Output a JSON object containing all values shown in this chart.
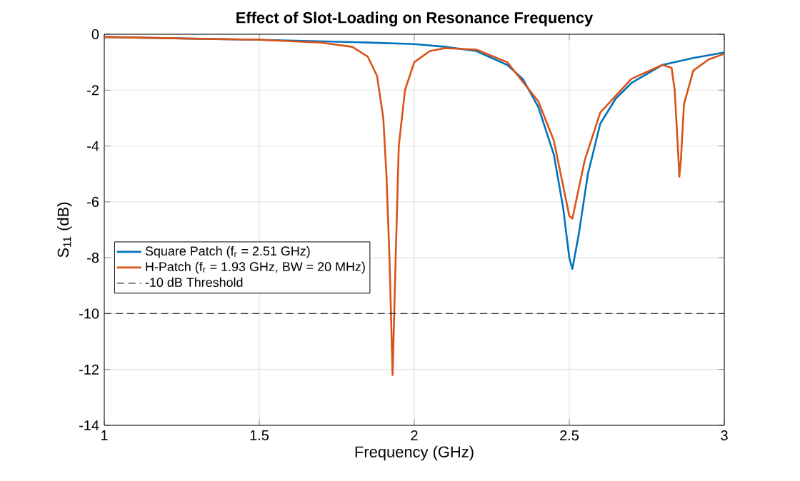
{
  "chart_data": {
    "type": "line",
    "title": "Effect of Slot-Loading on Resonance Frequency",
    "xlabel": "Frequency (GHz)",
    "ylabel": "S$_{11}$ (dB)",
    "xlim": [
      1,
      3
    ],
    "xticks": [
      1,
      1.5,
      2,
      2.5,
      3
    ],
    "ylim": [
      -14,
      0
    ],
    "yticks": [
      -14,
      -12,
      -10,
      -8,
      -6,
      -4,
      -2,
      0
    ],
    "grid": true,
    "legend": "left",
    "marker": "none",
    "line_style": "solid",
    "series": [
      {
        "name": "Square Patch (f$_{r}$ = 2.51 GHz)",
        "color": "#0072bd",
        "x": [
          1.0,
          1.5,
          1.8,
          2.0,
          2.1,
          2.2,
          2.3,
          2.35,
          2.4,
          2.45,
          2.48,
          2.5,
          2.51,
          2.53,
          2.56,
          2.6,
          2.65,
          2.7,
          2.8,
          2.9,
          3.0
        ],
        "values": [
          -0.1,
          -0.2,
          -0.28,
          -0.35,
          -0.45,
          -0.6,
          -1.1,
          -1.6,
          -2.6,
          -4.3,
          -6.2,
          -8.0,
          -8.4,
          -7.2,
          -5.0,
          -3.2,
          -2.3,
          -1.75,
          -1.1,
          -0.85,
          -0.65
        ]
      },
      {
        "name": "H-Patch (f$_{r}$ = 1.93 GHz, BW = 20 MHz)",
        "color": "#d95319",
        "x": [
          1.0,
          1.5,
          1.7,
          1.8,
          1.85,
          1.88,
          1.9,
          1.91,
          1.92,
          1.93,
          1.94,
          1.95,
          1.97,
          2.0,
          2.05,
          2.1,
          2.2,
          2.3,
          2.4,
          2.45,
          2.5,
          2.51,
          2.55,
          2.6,
          2.7,
          2.8,
          2.83,
          2.84,
          2.85,
          2.855,
          2.86,
          2.87,
          2.9,
          2.95,
          3.0
        ],
        "values": [
          -0.1,
          -0.2,
          -0.3,
          -0.45,
          -0.8,
          -1.5,
          -3.0,
          -5.0,
          -8.0,
          -12.2,
          -8.0,
          -4.0,
          -2.0,
          -1.0,
          -0.6,
          -0.5,
          -0.55,
          -1.0,
          -2.4,
          -3.8,
          -6.5,
          -6.6,
          -4.5,
          -2.8,
          -1.6,
          -1.1,
          -1.2,
          -2.0,
          -4.0,
          -5.1,
          -4.5,
          -2.5,
          -1.3,
          -0.9,
          -0.7
        ]
      }
    ],
    "ref_lines": [
      {
        "axis": "y",
        "value": -10,
        "label": "-10 dB Threshold",
        "color": "#333333",
        "line_style": "dashed"
      }
    ]
  }
}
